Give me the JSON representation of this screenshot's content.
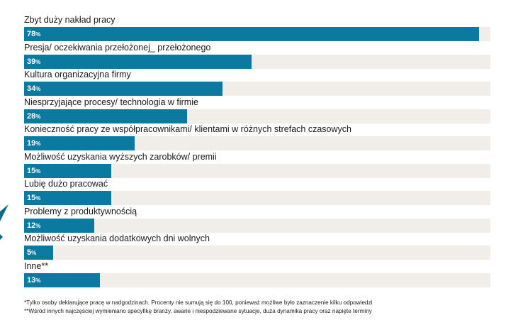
{
  "chart_data": {
    "type": "bar",
    "orientation": "horizontal",
    "categories": [
      "Zbyt duży nakład pracy",
      "Presja/ oczekiwania przełożonej_ przełożonego",
      "Kultura organizacyjna firmy",
      "Niesprzyjające procesy/ technologia w firmie",
      "Konieczność pracy ze współpracownikami/ klientami w różnych strefach czasowych",
      "Możliwość uzyskania wyższych zarobków/ premii",
      "Lubię dużo pracować",
      "Problemy z produktywnością",
      "Możliwość uzyskania dodatkowych dni wolnych",
      "Inne**"
    ],
    "values": [
      78,
      39,
      34,
      28,
      19,
      15,
      15,
      12,
      5,
      13
    ],
    "value_labels": [
      "78",
      "39",
      "34",
      "28",
      "19",
      "15",
      "15",
      "12",
      "5",
      "13"
    ],
    "unit": "%",
    "xlim": [
      0,
      78
    ],
    "colors": {
      "bar": "#0b7aa0",
      "track": "#f1eeea",
      "label_text": "#ffffff"
    }
  },
  "footnotes": [
    "*Tylko osoby deklarujące pracę w nadgodzinach. Procenty nie sumują się do 100, ponieważ możliwe było zaznaczenie kilku odpowiedzi",
    "**Wśród innych najczęściej wymieniano specyfikę branży, awarie i niespodziewane sytuacje, duża dynamika pracy oraz napięte terminy"
  ]
}
